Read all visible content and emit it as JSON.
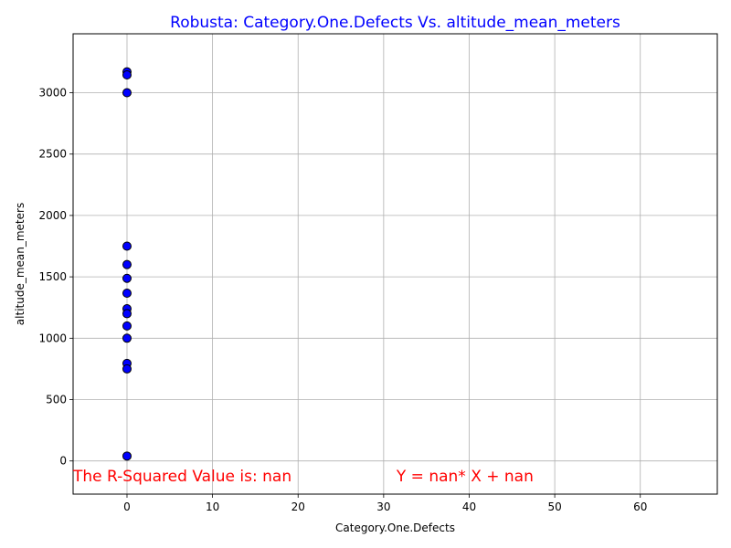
{
  "chart_data": {
    "type": "scatter",
    "title": "Robusta: Category.One.Defects Vs. altitude_mean_meters",
    "xlabel": "Category.One.Defects",
    "ylabel": "altitude_mean_meters",
    "xlim": [
      -6.3,
      69
    ],
    "ylim": [
      -270,
      3480
    ],
    "x_ticks": [
      0,
      10,
      20,
      30,
      40,
      50,
      60
    ],
    "y_ticks": [
      0,
      500,
      1000,
      1500,
      2000,
      2500,
      3000
    ],
    "grid": true,
    "colors": {
      "title": "#0000ff",
      "marker_fill": "#0000ff",
      "marker_edge": "#000000",
      "annotation": "#ff0000",
      "grid": "#b0b0b0"
    },
    "points": [
      {
        "x": 0,
        "y": 3170
      },
      {
        "x": 0,
        "y": 3145
      },
      {
        "x": 0,
        "y": 3000
      },
      {
        "x": 0,
        "y": 1750
      },
      {
        "x": 0,
        "y": 1600
      },
      {
        "x": 0,
        "y": 1488
      },
      {
        "x": 0,
        "y": 1367
      },
      {
        "x": 0,
        "y": 1240
      },
      {
        "x": 0,
        "y": 1200
      },
      {
        "x": 0,
        "y": 1100
      },
      {
        "x": 0,
        "y": 1000
      },
      {
        "x": 0,
        "y": 795
      },
      {
        "x": 0,
        "y": 750
      },
      {
        "x": 0,
        "y": 40
      }
    ],
    "annotations": [
      {
        "text": "The R-Squared Value is: nan",
        "x": -6.3,
        "y": -165
      },
      {
        "text": "Y = nan* X + nan",
        "x": 31.5,
        "y": -165
      }
    ]
  }
}
